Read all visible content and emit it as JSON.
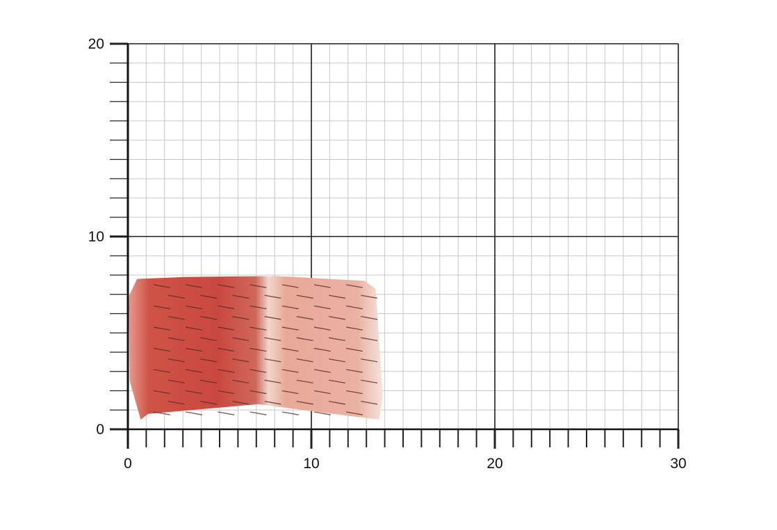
{
  "grid": {
    "x_range": [
      0,
      30
    ],
    "y_range": [
      0,
      20
    ],
    "minor_step": 1,
    "major_step": 10,
    "x_tick_labels": [
      "0",
      "10",
      "20",
      "30"
    ],
    "y_tick_labels": [
      "0",
      "10",
      "20"
    ],
    "minor_line_color": "#c8c8c8",
    "major_line_color": "#1a1a1a"
  },
  "specimen": {
    "subject": "scored meat slice",
    "extent_x": [
      0.1,
      13.9
    ],
    "extent_y": [
      0.5,
      7.9
    ],
    "colors": {
      "lean": "#c8473f",
      "fat": "#f1d3c6",
      "edge": "#e9b3a4"
    }
  }
}
